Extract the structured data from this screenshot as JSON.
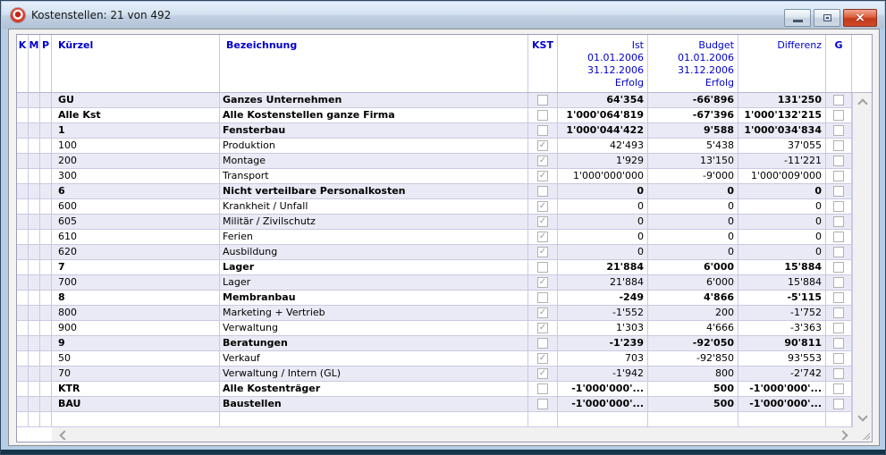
{
  "window": {
    "title": "Kostenstellen: 21 von 492",
    "icons": {
      "app_icon": "red-target-circle",
      "minimize": "dash",
      "restore": "window-restore-square",
      "close": "x-cross"
    },
    "close_glyph": "×"
  },
  "colors": {
    "header_text": "#0000cc",
    "row_alt": "#eaeaf6",
    "grid_line": "#c9c9e2",
    "close_button": "#c33a1c",
    "frame": "#b5cde6"
  },
  "table": {
    "header": {
      "k": "K",
      "m": "M",
      "p": "P",
      "kuerzel": "Kürzel",
      "bezeichnung": "Bezeichnung",
      "kst": "KST",
      "ist": "Ist\n01.01.2006\n31.12.2006\nErfolg",
      "budget": "Budget\n01.01.2006\n31.12.2006\nErfolg",
      "differenz": "Differenz",
      "g": "G"
    },
    "rows": [
      {
        "kuerzel": "GU",
        "bezeichnung": "Ganzes Unternehmen",
        "bold": true,
        "kst_checked": false,
        "ist": "64'354",
        "budget": "-66'896",
        "differenz": "131'250"
      },
      {
        "kuerzel": "Alle Kst",
        "bezeichnung": "Alle Kostenstellen ganze Firma",
        "bold": true,
        "kst_checked": false,
        "ist": "1'000'064'819",
        "budget": "-67'396",
        "differenz": "1'000'132'215"
      },
      {
        "kuerzel": "1",
        "bezeichnung": "Fensterbau",
        "bold": true,
        "kst_checked": false,
        "ist": "1'000'044'422",
        "budget": "9'588",
        "differenz": "1'000'034'834"
      },
      {
        "kuerzel": "100",
        "bezeichnung": "Produktion",
        "bold": false,
        "kst_checked": true,
        "ist": "42'493",
        "budget": "5'438",
        "differenz": "37'055"
      },
      {
        "kuerzel": "200",
        "bezeichnung": "Montage",
        "bold": false,
        "kst_checked": true,
        "ist": "1'929",
        "budget": "13'150",
        "differenz": "-11'221"
      },
      {
        "kuerzel": "300",
        "bezeichnung": "Transport",
        "bold": false,
        "kst_checked": true,
        "ist": "1'000'000'000",
        "budget": "-9'000",
        "differenz": "1'000'009'000"
      },
      {
        "kuerzel": "6",
        "bezeichnung": "Nicht verteilbare Personalkosten",
        "bold": true,
        "kst_checked": false,
        "ist": "0",
        "budget": "0",
        "differenz": "0"
      },
      {
        "kuerzel": "600",
        "bezeichnung": "Krankheit / Unfall",
        "bold": false,
        "kst_checked": true,
        "ist": "0",
        "budget": "0",
        "differenz": "0"
      },
      {
        "kuerzel": "605",
        "bezeichnung": "Militär / Zivilschutz",
        "bold": false,
        "kst_checked": true,
        "ist": "0",
        "budget": "0",
        "differenz": "0"
      },
      {
        "kuerzel": "610",
        "bezeichnung": "Ferien",
        "bold": false,
        "kst_checked": true,
        "ist": "0",
        "budget": "0",
        "differenz": "0"
      },
      {
        "kuerzel": "620",
        "bezeichnung": "Ausbildung",
        "bold": false,
        "kst_checked": true,
        "ist": "0",
        "budget": "0",
        "differenz": "0"
      },
      {
        "kuerzel": "7",
        "bezeichnung": "Lager",
        "bold": true,
        "kst_checked": false,
        "ist": "21'884",
        "budget": "6'000",
        "differenz": "15'884"
      },
      {
        "kuerzel": "700",
        "bezeichnung": "Lager",
        "bold": false,
        "kst_checked": true,
        "ist": "21'884",
        "budget": "6'000",
        "differenz": "15'884"
      },
      {
        "kuerzel": "8",
        "bezeichnung": "Membranbau",
        "bold": true,
        "kst_checked": false,
        "ist": "-249",
        "budget": "4'866",
        "differenz": "-5'115"
      },
      {
        "kuerzel": "800",
        "bezeichnung": "Marketing + Vertrieb",
        "bold": false,
        "kst_checked": true,
        "ist": "-1'552",
        "budget": "200",
        "differenz": "-1'752"
      },
      {
        "kuerzel": "900",
        "bezeichnung": "Verwaltung",
        "bold": false,
        "kst_checked": true,
        "ist": "1'303",
        "budget": "4'666",
        "differenz": "-3'363"
      },
      {
        "kuerzel": "9",
        "bezeichnung": "Beratungen",
        "bold": true,
        "kst_checked": false,
        "ist": "-1'239",
        "budget": "-92'050",
        "differenz": "90'811"
      },
      {
        "kuerzel": "50",
        "bezeichnung": "Verkauf",
        "bold": false,
        "kst_checked": true,
        "ist": "703",
        "budget": "-92'850",
        "differenz": "93'553"
      },
      {
        "kuerzel": "70",
        "bezeichnung": "Verwaltung / Intern (GL)",
        "bold": false,
        "kst_checked": true,
        "ist": "-1'942",
        "budget": "800",
        "differenz": "-2'742"
      },
      {
        "kuerzel": "KTR",
        "bezeichnung": "Alle Kostenträger",
        "bold": true,
        "kst_checked": false,
        "ist": "-1'000'000'...",
        "budget": "500",
        "differenz": "-1'000'000'..."
      },
      {
        "kuerzel": "BAU",
        "bezeichnung": "Baustellen",
        "bold": true,
        "kst_checked": false,
        "ist": "-1'000'000'...",
        "budget": "500",
        "differenz": "-1'000'000'..."
      }
    ]
  }
}
